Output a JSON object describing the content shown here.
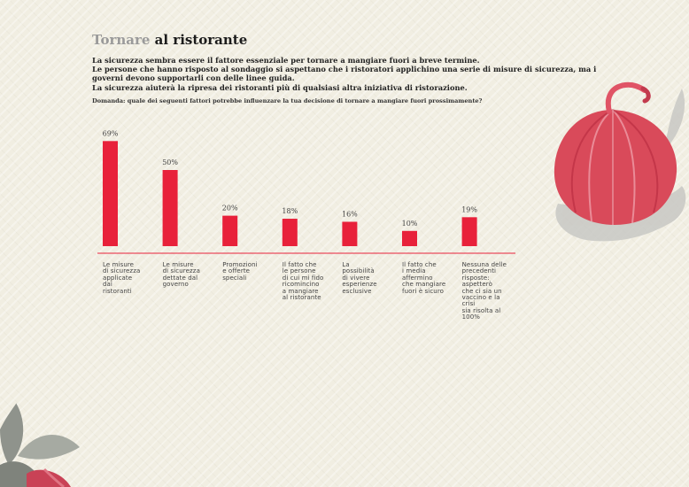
{
  "title": {
    "muted": "Tornare",
    "main": "al ristorante"
  },
  "intro": [
    "La sicurezza sembra essere il fattore essenziale per tornare a mangiare fuori a breve termine.",
    "Le persone che hanno risposto al sondaggio si aspettano che i ristoratori applichino una serie di misure di sicurezza, ma i governi devono supportarli con delle linee guida.",
    "La sicurezza aiuterà la ripresa dei ristoranti più di qualsiasi altra iniziativa di ristorazione."
  ],
  "question": "Domanda: quale dei seguenti fattori potrebbe influenzare la tua decisione di tornare a mangiare fuori prossimamente?",
  "colors": {
    "bar": "#e8213a",
    "baseline": "#e8213a",
    "title_muted": "#9a9a9a"
  },
  "chart_data": {
    "type": "bar",
    "title": "",
    "xlabel": "",
    "ylabel": "",
    "ylim": [
      0,
      80
    ],
    "categories": [
      "Le misure di sicurezza applicate dai ristoranti",
      "Le misure di sicurezza dettate dal governo",
      "Promozioni e offerte speciali",
      "Il fatto che le persone di cui mi fido ricomincino a mangiare al ristorante",
      "La possibilità di vivere esperienze esclusive",
      "Il fatto che i media affermino che mangiare fuori è sicuro",
      "Nessuna delle precedenti risposte: aspetterò che ci sia un vaccino e la crisi sia risolta al 100%"
    ],
    "category_lines": [
      [
        "Le misure",
        "di sicurezza",
        "applicate",
        "dai",
        "ristoranti"
      ],
      [
        "Le misure",
        "di sicurezza",
        "dettate dal",
        "governo"
      ],
      [
        "Promozioni",
        "e offerte",
        "speciali"
      ],
      [
        "Il fatto che",
        "le persone",
        "di cui mi fido",
        "ricomincino",
        "a mangiare",
        "al ristorante"
      ],
      [
        "La",
        "possibilità",
        "di vivere",
        "esperienze",
        "esclusive"
      ],
      [
        "Il fatto che",
        "i media",
        "affermino",
        "che mangiare",
        "fuori è sicuro"
      ],
      [
        "Nessuna delle",
        "precedenti",
        "risposte: aspetterò",
        "che ci sia un",
        "vaccino e la crisi",
        "sia risolta al 100%"
      ]
    ],
    "values": [
      69,
      50,
      20,
      18,
      16,
      10,
      19
    ],
    "value_labels": [
      "69%",
      "50%",
      "20%",
      "18%",
      "16%",
      "10%",
      "19%"
    ]
  }
}
